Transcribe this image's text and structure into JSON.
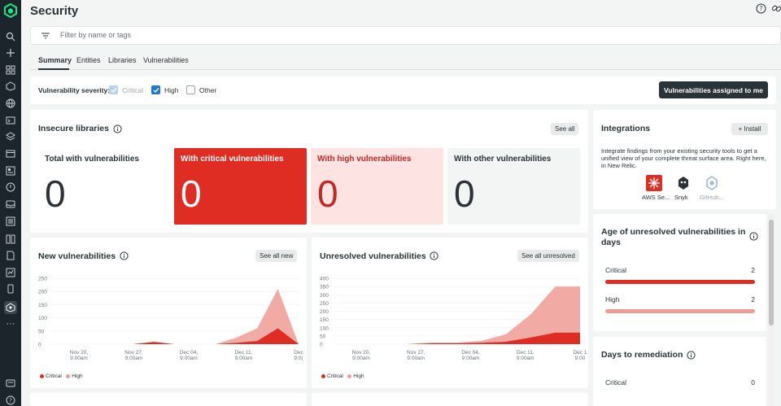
{
  "page": {
    "title": "Security"
  },
  "filter": {
    "placeholder": "Filter by name or tags"
  },
  "tabs": [
    {
      "label": "Summary",
      "selected": true
    },
    {
      "label": "Entities",
      "selected": false
    },
    {
      "label": "Libraries",
      "selected": false
    },
    {
      "label": "Vulnerabilities",
      "selected": false
    }
  ],
  "severity": {
    "label": "Vulnerability severity:",
    "options": [
      {
        "label": "Critical",
        "checked": true,
        "disabled": true
      },
      {
        "label": "High",
        "checked": true,
        "disabled": false
      },
      {
        "label": "Other",
        "checked": false,
        "disabled": false
      }
    ],
    "assigned_button": "Vulnerabilities assigned to me"
  },
  "insecure_libraries": {
    "title": "Insecure libraries",
    "see_all": "See all",
    "tiles": [
      {
        "label": "Total with vulnerabilities",
        "value": "0",
        "bg": "#f3f4f4",
        "fg": "#293338"
      },
      {
        "label": "With critical vulnerabilities",
        "value": "0",
        "bg": "#df2d24",
        "fg": "#ffffff"
      },
      {
        "label": "With high vulnerabilities",
        "value": "0",
        "bg": "#fde3e2",
        "fg": "#c32722"
      },
      {
        "label": "With other vulnerabilities",
        "value": "0",
        "bg": "#f3f4f4",
        "fg": "#293338"
      }
    ]
  },
  "integrations": {
    "title": "Integrations",
    "install": "Install",
    "description": "Integrate findings from your existing security tools to get a unified view of your complete threat surface area. Right here, in New Relic.",
    "items": [
      {
        "name": "AWS Se...",
        "icon": "aws-security-hub-icon",
        "muted": false
      },
      {
        "name": "Snyk",
        "icon": "snyk-icon",
        "muted": false
      },
      {
        "name": "GitHub...",
        "icon": "github-icon",
        "muted": true
      }
    ]
  },
  "age_unresolved": {
    "title": "Age of unresolved vulnerabilities in days",
    "rows": [
      {
        "label": "Critical",
        "value": "2",
        "color": "#df2d24"
      },
      {
        "label": "High",
        "value": "2",
        "color": "#f09c94"
      }
    ]
  },
  "days_to_remediation": {
    "title": "Days to remediation",
    "rows": [
      {
        "label": "Critical",
        "value": "0"
      }
    ]
  },
  "colors": {
    "critical": "#df2d24",
    "high": "#f09c94"
  },
  "chart_data": [
    {
      "type": "area",
      "title": "New vulnerabilities",
      "see_button": "See all new",
      "ylim": [
        0,
        250
      ],
      "yticks": [
        0,
        50,
        100,
        150,
        200,
        250
      ],
      "xticks": [
        "Nov 20,\n9:00am",
        "Nov 27,\n9:00am",
        "Dec 04,\n9:00am",
        "Dec 11,\n9:00am",
        "Dec\n9:0("
      ],
      "x": [
        "Nov 17",
        "Nov 20",
        "Nov 27",
        "Dec 04",
        "Dec 06",
        "Dec 07",
        "Dec 08",
        "Dec 11",
        "Dec 14",
        "Dec 15",
        "Dec 16",
        "Dec 17",
        "Dec 18"
      ],
      "series": [
        {
          "name": "Critical",
          "color": "#df2d24",
          "values": [
            0,
            0,
            0,
            0,
            0,
            8,
            0,
            0,
            0,
            5,
            12,
            60,
            0
          ]
        },
        {
          "name": "High",
          "color": "#f09c94",
          "values": [
            0,
            0,
            0,
            0,
            0,
            10,
            0,
            0,
            0,
            25,
            60,
            210,
            0
          ]
        }
      ],
      "legend": "bottom-left"
    },
    {
      "type": "area",
      "title": "Unresolved vulnerabilities",
      "see_button": "See all unresolved",
      "ylim": [
        0,
        400
      ],
      "yticks": [
        0,
        50,
        100,
        150,
        200,
        250,
        300,
        350,
        400
      ],
      "xticks": [
        "Nov 20,\n9:00am",
        "Nov 27,\n9:00am",
        "Dec 04,\n9:00am",
        "Dec 11,\n9:00am",
        "Dec 1\n9:00"
      ],
      "x": [
        "Nov 17",
        "Nov 20",
        "Nov 27",
        "Dec 04",
        "Dec 06",
        "Dec 11",
        "Dec 13",
        "Dec 14",
        "Dec 15",
        "Dec 16",
        "Dec 18"
      ],
      "series": [
        {
          "name": "Critical",
          "color": "#df2d24",
          "values": [
            0,
            0,
            0,
            0,
            5,
            5,
            8,
            15,
            40,
            70,
            70
          ]
        },
        {
          "name": "High",
          "color": "#f09c94",
          "values": [
            0,
            0,
            0,
            0,
            10,
            10,
            20,
            60,
            180,
            350,
            350
          ]
        }
      ],
      "legend": "bottom-left"
    }
  ]
}
